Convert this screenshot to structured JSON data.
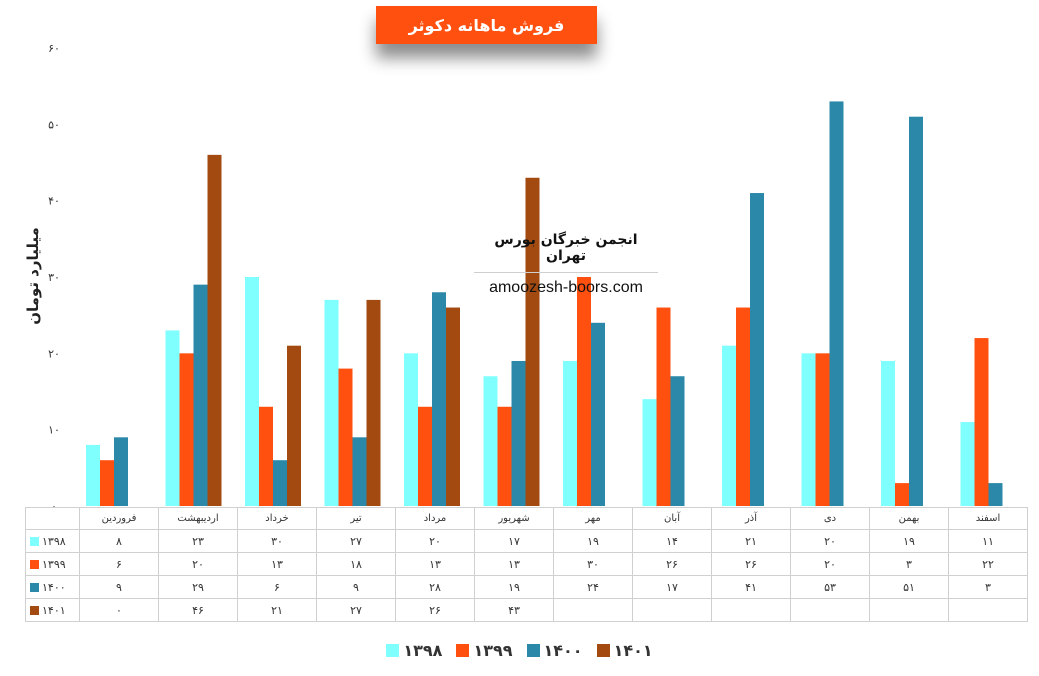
{
  "chart_data": {
    "type": "bar",
    "title": "فروش ماهانه دکوثر",
    "ylabel": "میلیارد تومان",
    "ylim": [
      0,
      60
    ],
    "yticks": [
      "۰",
      "۱۰",
      "۲۰",
      "۳۰",
      "۴۰",
      "۵۰",
      "۶۰"
    ],
    "grid": false,
    "legend_position": "bottom",
    "categories": [
      "فروردین",
      "اردیبهشت",
      "خرداد",
      "تیر",
      "مرداد",
      "شهریور",
      "مهر",
      "آبان",
      "آذر",
      "دی",
      "بهمن",
      "اسفند"
    ],
    "series": [
      {
        "name": "۱۳۹۸",
        "color": "#80ffff",
        "values": [
          8,
          23,
          30,
          27,
          20,
          17,
          19,
          14,
          21,
          20,
          19,
          11
        ],
        "labels": [
          "۸",
          "۲۳",
          "۳۰",
          "۲۷",
          "۲۰",
          "۱۷",
          "۱۹",
          "۱۴",
          "۲۱",
          "۲۰",
          "۱۹",
          "۱۱"
        ]
      },
      {
        "name": "۱۳۹۹",
        "color": "#ff5010",
        "values": [
          6,
          20,
          13,
          18,
          13,
          13,
          30,
          26,
          26,
          20,
          3,
          22
        ],
        "labels": [
          "۶",
          "۲۰",
          "۱۳",
          "۱۸",
          "۱۳",
          "۱۳",
          "۳۰",
          "۲۶",
          "۲۶",
          "۲۰",
          "۳",
          "۲۲"
        ]
      },
      {
        "name": "۱۴۰۰",
        "color": "#2b88a8",
        "values": [
          9,
          29,
          6,
          9,
          28,
          19,
          24,
          17,
          41,
          53,
          51,
          3
        ],
        "labels": [
          "۹",
          "۲۹",
          "۶",
          "۹",
          "۲۸",
          "۱۹",
          "۲۴",
          "۱۷",
          "۴۱",
          "۵۳",
          "۵۱",
          "۳"
        ]
      },
      {
        "name": "۱۴۰۱",
        "color": "#a24a10",
        "values": [
          0,
          46,
          21,
          27,
          26,
          43,
          null,
          null,
          null,
          null,
          null,
          null
        ],
        "labels": [
          "۰",
          "۴۶",
          "۲۱",
          "۲۷",
          "۲۶",
          "۴۳",
          "",
          "",
          "",
          "",
          "",
          ""
        ]
      }
    ]
  },
  "watermark": {
    "title": "انجمن خبرگان بورس تهران",
    "url": "amoozesh-boors.com"
  }
}
